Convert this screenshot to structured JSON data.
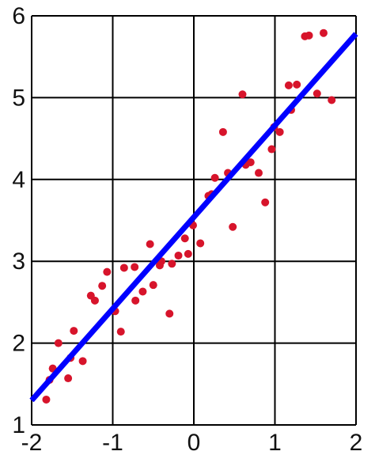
{
  "chart_data": {
    "type": "scatter",
    "title": "",
    "xlabel": "",
    "ylabel": "",
    "xlim": [
      -2,
      2
    ],
    "ylim": [
      1,
      6
    ],
    "grid": true,
    "xticks": [
      "-2",
      "-1",
      "0",
      "1",
      "2"
    ],
    "yticks": [
      "1",
      "2",
      "3",
      "4",
      "5",
      "6"
    ],
    "point_color": "#d7142b",
    "line_color": "#0000ff",
    "grid_color": "#000000",
    "points": [
      [
        -1.82,
        1.31
      ],
      [
        -1.78,
        1.55
      ],
      [
        -1.74,
        1.69
      ],
      [
        -1.67,
        2.0
      ],
      [
        -1.55,
        1.57
      ],
      [
        -1.52,
        1.82
      ],
      [
        -1.48,
        2.15
      ],
      [
        -1.37,
        1.78
      ],
      [
        -1.27,
        2.58
      ],
      [
        -1.22,
        2.52
      ],
      [
        -1.13,
        2.7
      ],
      [
        -1.07,
        2.87
      ],
      [
        -0.97,
        2.39
      ],
      [
        -0.9,
        2.14
      ],
      [
        -0.86,
        2.92
      ],
      [
        -0.73,
        2.93
      ],
      [
        -0.72,
        2.52
      ],
      [
        -0.63,
        2.63
      ],
      [
        -0.54,
        3.21
      ],
      [
        -0.5,
        2.71
      ],
      [
        -0.42,
        2.95
      ],
      [
        -0.4,
        3.0
      ],
      [
        -0.3,
        2.36
      ],
      [
        -0.27,
        2.97
      ],
      [
        -0.19,
        3.07
      ],
      [
        -0.11,
        3.28
      ],
      [
        -0.07,
        3.09
      ],
      [
        -0.01,
        3.44
      ],
      [
        0.08,
        3.22
      ],
      [
        0.18,
        3.8
      ],
      [
        0.22,
        3.82
      ],
      [
        0.26,
        4.02
      ],
      [
        0.36,
        4.58
      ],
      [
        0.42,
        4.08
      ],
      [
        0.48,
        3.42
      ],
      [
        0.6,
        5.04
      ],
      [
        0.64,
        4.18
      ],
      [
        0.7,
        4.21
      ],
      [
        0.8,
        4.08
      ],
      [
        0.88,
        3.72
      ],
      [
        0.96,
        4.37
      ],
      [
        0.99,
        4.64
      ],
      [
        1.06,
        4.58
      ],
      [
        1.17,
        5.15
      ],
      [
        1.2,
        4.85
      ],
      [
        1.27,
        5.16
      ],
      [
        1.37,
        5.75
      ],
      [
        1.42,
        5.76
      ],
      [
        1.52,
        5.05
      ],
      [
        1.6,
        5.79
      ],
      [
        1.7,
        4.97
      ]
    ],
    "fit_line": {
      "x": [
        -2,
        2
      ],
      "y": [
        1.3,
        5.78
      ]
    }
  }
}
